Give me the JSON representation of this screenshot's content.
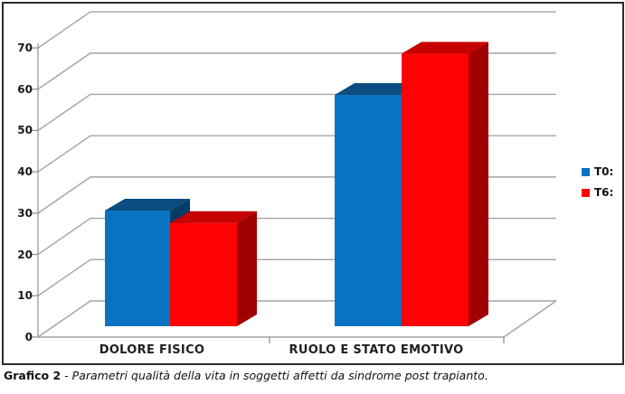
{
  "figure": {
    "caption_label": "Grafico 2",
    "caption_text": "- Parametri qualità della vita in soggetti affetti da sindrome post trapianto."
  },
  "chart_data": {
    "type": "bar",
    "projection": "3d-clustered-column",
    "title": "",
    "categories": [
      "DOLORE FISICO",
      "RUOLO E STATO EMOTIVO"
    ],
    "series": [
      {
        "name": "T0:",
        "values": [
          28,
          56
        ],
        "color_front": "#0873C2",
        "color_top": "#0B4D80",
        "color_side": "#063C66"
      },
      {
        "name": "T6:",
        "values": [
          25,
          66
        ],
        "color_front": "#FE0100",
        "color_top": "#C70100",
        "color_side": "#A00000"
      }
    ],
    "ylim": [
      0,
      70
    ],
    "yticks": [
      0,
      10,
      20,
      30,
      40,
      50,
      60,
      70
    ],
    "grid": true,
    "legend_position": "middle-right",
    "gridline_color": "#A3A3A3",
    "axis_color": "#9A9A9A",
    "tick_color": "#8C8C8C"
  }
}
